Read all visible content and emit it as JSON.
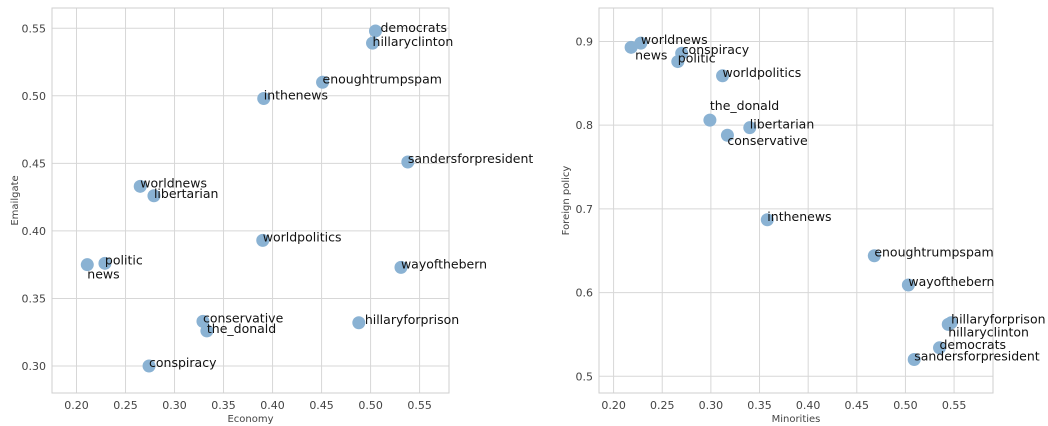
{
  "chart_data": [
    {
      "type": "scatter",
      "xlabel": "Economy",
      "ylabel": "Emailgate",
      "xlim": [
        0.175,
        0.58
      ],
      "ylim": [
        0.28,
        0.565
      ],
      "xticks": [
        0.2,
        0.25,
        0.3,
        0.35,
        0.4,
        0.45,
        0.5,
        0.55
      ],
      "yticks": [
        0.3,
        0.35,
        0.4,
        0.45,
        0.5,
        0.55
      ],
      "grid": true,
      "color": "#8ab2d3",
      "points": [
        {
          "label": "democrats",
          "x": 0.505,
          "y": 0.548
        },
        {
          "label": "hillaryclinton",
          "x": 0.502,
          "y": 0.539
        },
        {
          "label": "enoughtrumpspam",
          "x": 0.451,
          "y": 0.51
        },
        {
          "label": "inthenews",
          "x": 0.391,
          "y": 0.498
        },
        {
          "label": "sandersforpresident",
          "x": 0.538,
          "y": 0.451
        },
        {
          "label": "worldnews",
          "x": 0.265,
          "y": 0.433
        },
        {
          "label": "libertarian",
          "x": 0.279,
          "y": 0.426
        },
        {
          "label": "worldpolitics",
          "x": 0.39,
          "y": 0.393
        },
        {
          "label": "politic",
          "x": 0.229,
          "y": 0.376
        },
        {
          "label": "news",
          "x": 0.211,
          "y": 0.375
        },
        {
          "label": "wayofthebern",
          "x": 0.531,
          "y": 0.373
        },
        {
          "label": "conservative",
          "x": 0.329,
          "y": 0.333
        },
        {
          "label": "hillaryforprison",
          "x": 0.488,
          "y": 0.332
        },
        {
          "label": "the_donald",
          "x": 0.333,
          "y": 0.326
        },
        {
          "label": "conspiracy",
          "x": 0.274,
          "y": 0.3
        }
      ]
    },
    {
      "type": "scatter",
      "xlabel": "Minorities",
      "ylabel": "Foreign policy",
      "xlim": [
        0.185,
        0.59
      ],
      "ylim": [
        0.48,
        0.94
      ],
      "xticks": [
        0.2,
        0.25,
        0.3,
        0.35,
        0.4,
        0.45,
        0.5,
        0.55
      ],
      "yticks": [
        0.5,
        0.6,
        0.7,
        0.8,
        0.9
      ],
      "grid": true,
      "color": "#8ab2d3",
      "points": [
        {
          "label": "worldnews",
          "x": 0.228,
          "y": 0.898
        },
        {
          "label": "news",
          "x": 0.218,
          "y": 0.893
        },
        {
          "label": "conspiracy",
          "x": 0.27,
          "y": 0.886
        },
        {
          "label": "politic",
          "x": 0.266,
          "y": 0.876
        },
        {
          "label": "worldpolitics",
          "x": 0.312,
          "y": 0.859
        },
        {
          "label": "the_donald",
          "x": 0.299,
          "y": 0.806
        },
        {
          "label": "libertarian",
          "x": 0.34,
          "y": 0.797
        },
        {
          "label": "conservative",
          "x": 0.317,
          "y": 0.788
        },
        {
          "label": "inthenews",
          "x": 0.358,
          "y": 0.687
        },
        {
          "label": "enoughtrumpspam",
          "x": 0.468,
          "y": 0.644
        },
        {
          "label": "wayofthebern",
          "x": 0.503,
          "y": 0.609
        },
        {
          "label": "hillaryforprison",
          "x": 0.547,
          "y": 0.564
        },
        {
          "label": "hillaryclinton",
          "x": 0.544,
          "y": 0.562
        },
        {
          "label": "democrats",
          "x": 0.535,
          "y": 0.534
        },
        {
          "label": "sandersforpresident",
          "x": 0.509,
          "y": 0.52
        }
      ]
    }
  ]
}
